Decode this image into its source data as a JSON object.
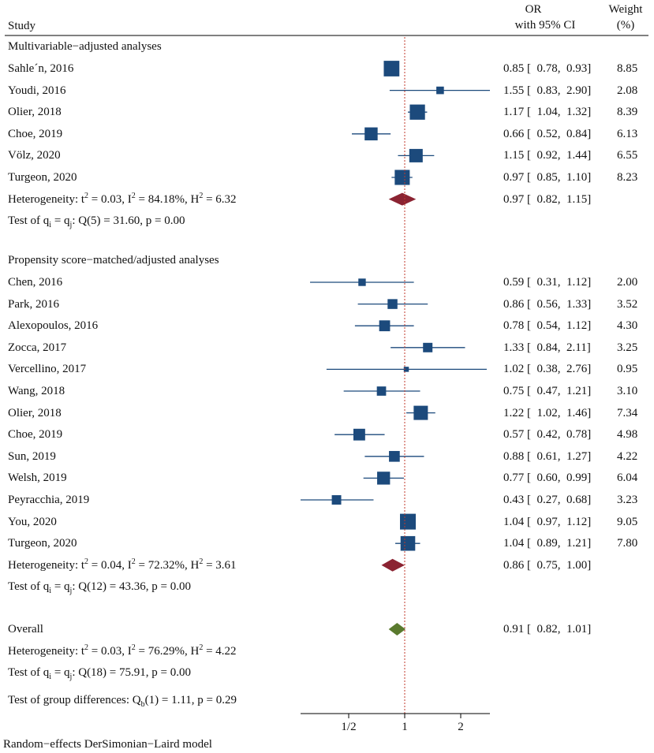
{
  "chart_data": {
    "type": "forest",
    "scale": "log",
    "measure": "OR",
    "colors": {
      "study": "#1c4a7c",
      "subgroup": "#8b2332",
      "overall": "#5a7a2e",
      "refline": "#c0392b",
      "axis": "#000000"
    },
    "header": {
      "study": "Study",
      "or_line1": "OR",
      "or_line2": "with 95% CI",
      "weight_line1": "Weight",
      "weight_line2": "(%)"
    },
    "x_axis": {
      "ticks": [
        0.5,
        1,
        2
      ],
      "tick_labels": [
        "1/2",
        "1",
        "2"
      ],
      "reference": 1
    },
    "groups": [
      {
        "title": "Multivariable−adjusted analyses",
        "studies": [
          {
            "name": "Sahle´n, 2016",
            "or": 0.85,
            "lo": 0.78,
            "hi": 0.93,
            "weight": 8.85,
            "ci_text": "0.85 [  0.78,  0.93]",
            "weight_text": "8.85"
          },
          {
            "name": "Youdi, 2016",
            "or": 1.55,
            "lo": 0.83,
            "hi": 2.9,
            "weight": 2.08,
            "ci_text": "1.55 [  0.83,  2.90]",
            "weight_text": "2.08"
          },
          {
            "name": "Olier, 2018",
            "or": 1.17,
            "lo": 1.04,
            "hi": 1.32,
            "weight": 8.39,
            "ci_text": "1.17 [  1.04,  1.32]",
            "weight_text": "8.39"
          },
          {
            "name": "Choe, 2019",
            "or": 0.66,
            "lo": 0.52,
            "hi": 0.84,
            "weight": 6.13,
            "ci_text": "0.66 [  0.52,  0.84]",
            "weight_text": "6.13"
          },
          {
            "name": "Völz, 2020",
            "or": 1.15,
            "lo": 0.92,
            "hi": 1.44,
            "weight": 6.55,
            "ci_text": "1.15 [  0.92,  1.44]",
            "weight_text": "6.55"
          },
          {
            "name": "Turgeon, 2020",
            "or": 0.97,
            "lo": 0.85,
            "hi": 1.1,
            "weight": 8.23,
            "ci_text": "0.97 [  0.85,  1.10]",
            "weight_text": "8.23"
          }
        ],
        "summary": {
          "or": 0.97,
          "lo": 0.82,
          "hi": 1.15,
          "ci_text": "0.97 [  0.82,  1.15]"
        },
        "het": {
          "tau2": "0.03",
          "i2": "84.18%",
          "h2": "6.32"
        },
        "test": {
          "q": "Q(5) = 31.60",
          "p": "p = 0.00"
        }
      },
      {
        "title": "Propensity score−matched/adjusted analyses",
        "studies": [
          {
            "name": "Chen, 2016",
            "or": 0.59,
            "lo": 0.31,
            "hi": 1.12,
            "weight": 2.0,
            "ci_text": "0.59 [  0.31,  1.12]",
            "weight_text": "2.00"
          },
          {
            "name": "Park, 2016",
            "or": 0.86,
            "lo": 0.56,
            "hi": 1.33,
            "weight": 3.52,
            "ci_text": "0.86 [  0.56,  1.33]",
            "weight_text": "3.52"
          },
          {
            "name": "Alexopoulos, 2016",
            "or": 0.78,
            "lo": 0.54,
            "hi": 1.12,
            "weight": 4.3,
            "ci_text": "0.78 [  0.54,  1.12]",
            "weight_text": "4.30"
          },
          {
            "name": "Zocca, 2017",
            "or": 1.33,
            "lo": 0.84,
            "hi": 2.11,
            "weight": 3.25,
            "ci_text": "1.33 [  0.84,  2.11]",
            "weight_text": "3.25"
          },
          {
            "name": "Vercellino, 2017",
            "or": 1.02,
            "lo": 0.38,
            "hi": 2.76,
            "weight": 0.95,
            "ci_text": "1.02 [  0.38,  2.76]",
            "weight_text": "0.95"
          },
          {
            "name": "Wang, 2018",
            "or": 0.75,
            "lo": 0.47,
            "hi": 1.21,
            "weight": 3.1,
            "ci_text": "0.75 [  0.47,  1.21]",
            "weight_text": "3.10"
          },
          {
            "name": "Olier, 2018",
            "or": 1.22,
            "lo": 1.02,
            "hi": 1.46,
            "weight": 7.34,
            "ci_text": "1.22 [  1.02,  1.46]",
            "weight_text": "7.34"
          },
          {
            "name": "Choe, 2019",
            "or": 0.57,
            "lo": 0.42,
            "hi": 0.78,
            "weight": 4.98,
            "ci_text": "0.57 [  0.42,  0.78]",
            "weight_text": "4.98"
          },
          {
            "name": "Sun, 2019",
            "or": 0.88,
            "lo": 0.61,
            "hi": 1.27,
            "weight": 4.22,
            "ci_text": "0.88 [  0.61,  1.27]",
            "weight_text": "4.22"
          },
          {
            "name": "Welsh, 2019",
            "or": 0.77,
            "lo": 0.6,
            "hi": 0.99,
            "weight": 6.04,
            "ci_text": "0.77 [  0.60,  0.99]",
            "weight_text": "6.04"
          },
          {
            "name": "Peyracchia, 2019",
            "or": 0.43,
            "lo": 0.27,
            "hi": 0.68,
            "weight": 3.23,
            "ci_text": "0.43 [  0.27,  0.68]",
            "weight_text": "3.23"
          },
          {
            "name": "You, 2020",
            "or": 1.04,
            "lo": 0.97,
            "hi": 1.12,
            "weight": 9.05,
            "ci_text": "1.04 [  0.97,  1.12]",
            "weight_text": "9.05"
          },
          {
            "name": "Turgeon, 2020",
            "or": 1.04,
            "lo": 0.89,
            "hi": 1.21,
            "weight": 7.8,
            "ci_text": "1.04 [  0.89,  1.21]",
            "weight_text": "7.80"
          }
        ],
        "summary": {
          "or": 0.86,
          "lo": 0.75,
          "hi": 1.0,
          "ci_text": "0.86 [  0.75,  1.00]"
        },
        "het": {
          "tau2": "0.04",
          "i2": "72.32%",
          "h2": "3.61"
        },
        "test": {
          "q": "Q(12) = 43.36",
          "p": "p = 0.00"
        }
      }
    ],
    "overall": {
      "label": "Overall",
      "or": 0.91,
      "lo": 0.82,
      "hi": 1.01,
      "ci_text": "0.91 [  0.82,  1.01]",
      "het": {
        "tau2": "0.03",
        "i2": "76.29%",
        "h2": "4.22"
      },
      "test": {
        "q": "Q(18) = 75.91",
        "p": "p = 0.00"
      }
    },
    "group_test": {
      "label": "Test of group differences:",
      "stat": "(1) = 1.11",
      "p": "p = 0.29"
    },
    "footnote": "Random−effects DerSimonian−Laird model"
  }
}
